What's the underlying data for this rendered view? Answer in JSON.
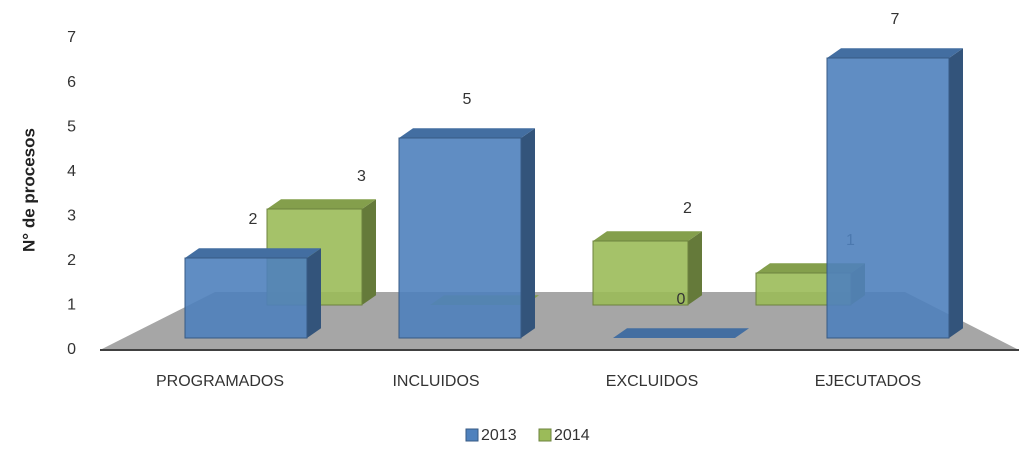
{
  "chart_data": {
    "type": "bar3d",
    "y_label": "N° de procesos",
    "categories": [
      "PROGRAMADOS",
      "INCLUIDOS",
      "EXCLUIDOS",
      "EJECUTADOS"
    ],
    "series": [
      {
        "name": "2013",
        "color": "#4f81bd",
        "values": [
          2,
          5,
          0,
          7
        ]
      },
      {
        "name": "2014",
        "color": "#9bbb59",
        "values": [
          3,
          0,
          2,
          1
        ]
      }
    ],
    "ylim": [
      0,
      7
    ],
    "yticks": [
      0,
      1,
      2,
      3,
      4,
      5,
      6,
      7
    ],
    "legend": "bottom"
  }
}
